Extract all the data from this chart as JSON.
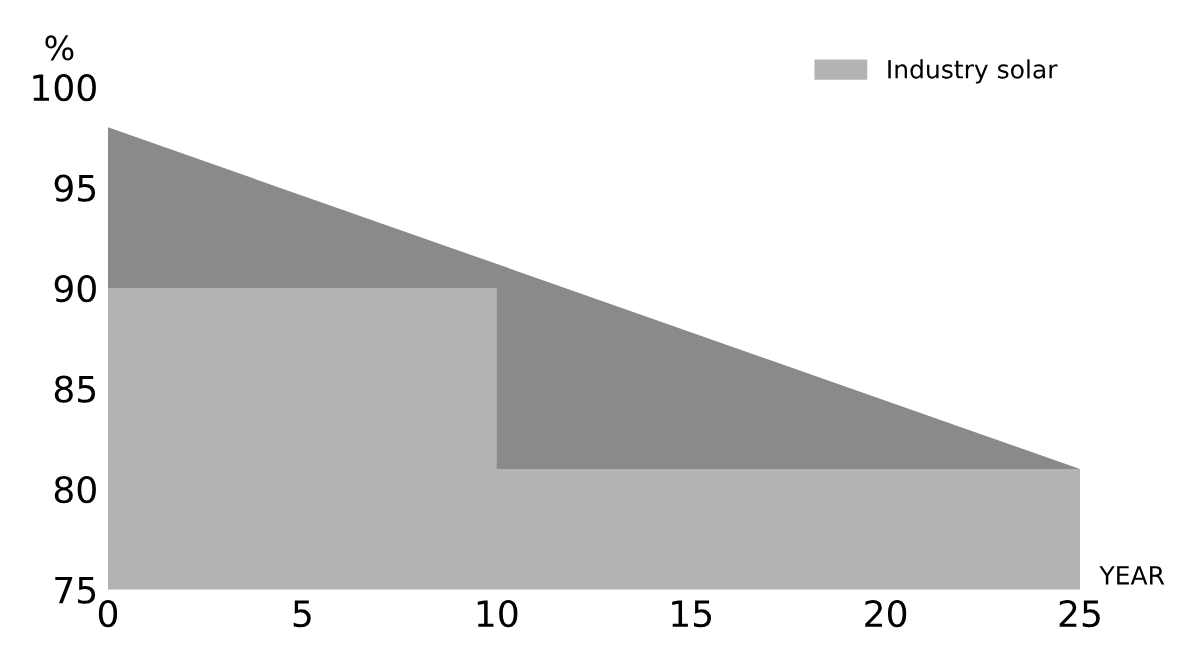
{
  "chart_data": {
    "type": "area",
    "ylabel": "%",
    "xlabel": "YEAR",
    "series": [
      {
        "color": "#8a8a8a",
        "x": [
          0,
          25
        ],
        "values": [
          98,
          81
        ]
      },
      {
        "name": "Industry solar",
        "color": "#b3b3b3",
        "x": [
          0,
          10,
          10,
          25
        ],
        "values": [
          90,
          90,
          81,
          81
        ]
      }
    ],
    "xlim": [
      0,
      25
    ],
    "xticks": [
      0,
      5,
      10,
      15,
      20,
      25
    ],
    "ylim": [
      75,
      100
    ],
    "yticks": [
      75,
      80,
      85,
      90,
      95,
      100
    ],
    "grid": false,
    "legend": "top right"
  }
}
